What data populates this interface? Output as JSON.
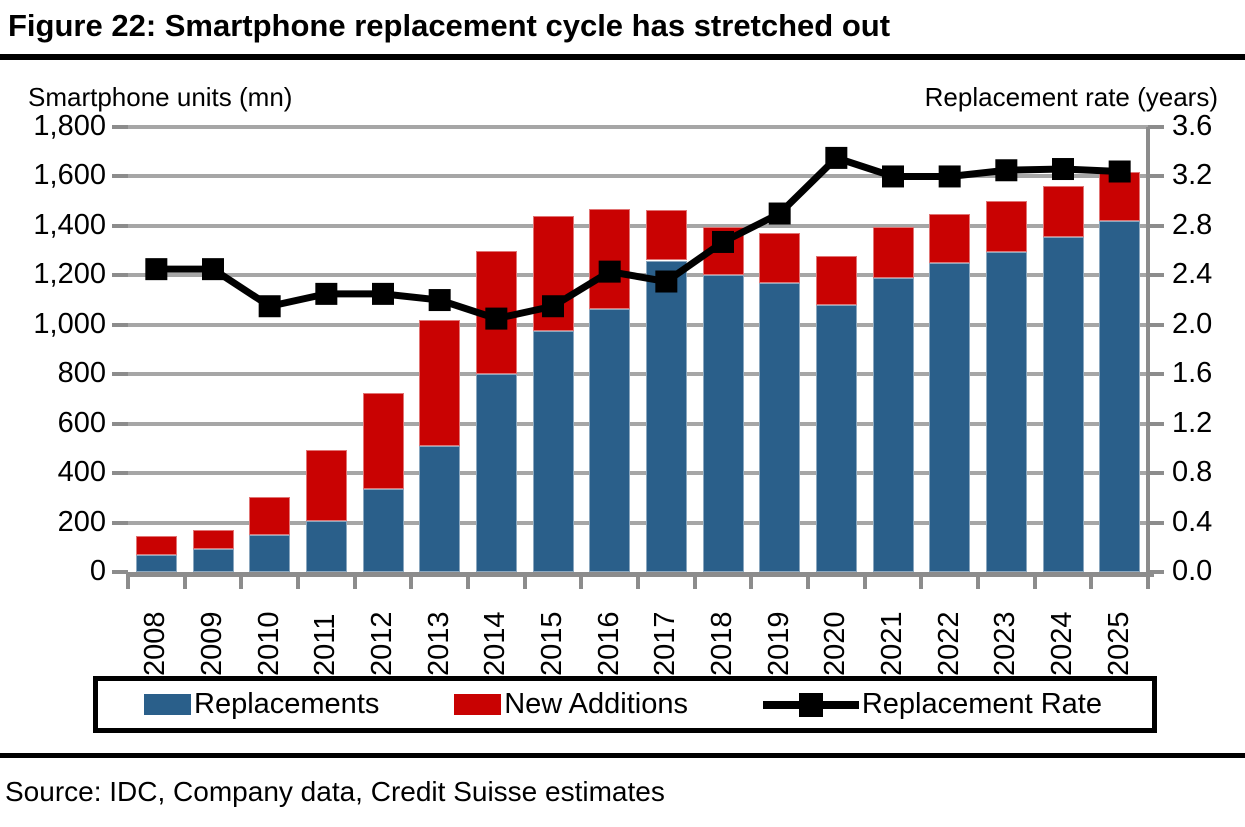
{
  "figure": {
    "title": "Figure 22: Smartphone replacement cycle has stretched out"
  },
  "source_line": "Source: IDC, Company data, Credit Suisse estimates",
  "colors": {
    "replacements_bar": "#2A5F8A",
    "new_additions_bar": "#C90202",
    "replacement_rate_line": "#000000",
    "gridline": "#A6A6A6",
    "axis": "#8C8C8C"
  },
  "legend": {
    "items": [
      {
        "label": "Replacements",
        "swatch": "blue-bar"
      },
      {
        "label": "New Additions",
        "swatch": "red-bar"
      },
      {
        "label": "Replacement Rate",
        "swatch": "black-line-square-marker"
      }
    ]
  },
  "chart_data": {
    "type": "combo-stacked-bar-line",
    "title": "Figure 22: Smartphone replacement cycle has stretched out",
    "categories": [
      "2008",
      "2009",
      "2010",
      "2011",
      "2012",
      "2013",
      "2014",
      "2015",
      "2016",
      "2017",
      "2018",
      "2019",
      "2020",
      "2021",
      "2022",
      "2023",
      "2024",
      "2025"
    ],
    "series": [
      {
        "name": "Replacements",
        "type": "bar",
        "axis": "left",
        "color": "#2A5F8A",
        "values": [
          70,
          95,
          148,
          205,
          335,
          510,
          800,
          975,
          1065,
          1260,
          1200,
          1170,
          1080,
          1190,
          1250,
          1295,
          1355,
          1420
        ]
      },
      {
        "name": "New Additions",
        "type": "bar",
        "axis": "left",
        "color": "#C90202",
        "values": [
          75,
          75,
          157,
          290,
          390,
          510,
          500,
          465,
          405,
          205,
          195,
          200,
          200,
          205,
          200,
          205,
          205,
          200
        ]
      },
      {
        "name": "Replacement Rate",
        "type": "line",
        "axis": "right",
        "color": "#000000",
        "marker": "square",
        "values": [
          2.45,
          2.45,
          2.15,
          2.25,
          2.25,
          2.2,
          2.05,
          2.15,
          2.43,
          2.35,
          2.67,
          2.9,
          3.35,
          3.2,
          3.2,
          3.25,
          3.26,
          3.24
        ]
      }
    ],
    "left_axis": {
      "title": "Smartphone units (mn)",
      "min": 0,
      "max": 1800,
      "step": 200,
      "tick_labels": [
        "0",
        "200",
        "400",
        "600",
        "800",
        "1,000",
        "1,200",
        "1,400",
        "1,600",
        "1,800"
      ]
    },
    "right_axis": {
      "title": "Replacement rate (years)",
      "min": 0,
      "max": 3.6,
      "step": 0.4,
      "tick_labels": [
        "0.0",
        "0.4",
        "0.8",
        "1.2",
        "1.6",
        "2.0",
        "2.4",
        "2.8",
        "3.2",
        "3.6"
      ]
    },
    "grid": true,
    "legend_position": "bottom",
    "x_label_rotation": 90
  }
}
